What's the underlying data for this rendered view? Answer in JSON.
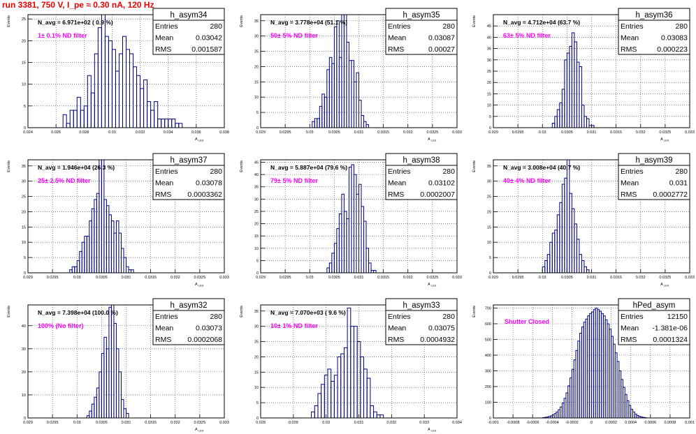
{
  "page": {
    "title": "run 3381,   750 V, I_pe ≈ 0.30 nA, 120 Hz",
    "title_color": "#ee0000",
    "hist_color": "#000080",
    "annotation_color": "#ff00ff"
  },
  "panels": [
    {
      "name": "h_asym34",
      "stats": {
        "entries_label": "Entries",
        "entries": "280",
        "mean_label": "Mean",
        "mean": "0.03042",
        "rms_label": "RMS",
        "rms": "0.001587"
      },
      "navg": "N_avg = 6.971e+02 ( 0.9 %)",
      "filter": "1± 0.1% ND filter",
      "chart_data": {
        "type": "histogram",
        "xlabel": "A",
        "xlabel_sub": "LED",
        "ylabel": "Events",
        "xlim": [
          0.024,
          0.038
        ],
        "ylim": [
          0,
          26
        ],
        "xticks": [
          0.024,
          0.026,
          0.028,
          0.03,
          0.032,
          0.034,
          0.036,
          0.038
        ],
        "xtick_labels": [
          "0.024",
          "0.026",
          "0.028",
          "0.03",
          "0.032",
          "0.034",
          "0.036",
          "0.038"
        ],
        "yticks": [
          0,
          5,
          10,
          15,
          20,
          25
        ],
        "ytick_labels": [
          "0",
          "5",
          "10",
          "15",
          "20",
          "25"
        ],
        "grid": true,
        "bins_start": 0.0265,
        "bin_width": 0.00025,
        "counts": [
          3,
          1,
          4,
          4,
          7,
          4,
          5,
          12,
          8,
          17,
          23,
          26,
          21,
          20,
          18,
          13,
          17,
          21,
          18,
          17,
          14,
          12,
          9,
          11,
          6,
          4,
          6,
          2,
          2,
          2,
          2,
          2,
          1,
          1
        ]
      }
    },
    {
      "name": "h_asym35",
      "stats": {
        "entries_label": "Entries",
        "entries": "280",
        "mean_label": "Mean",
        "mean": "0.03087",
        "rms_label": "RMS",
        "rms": "0.00027"
      },
      "navg": "N_avg = 3.778e+04 (51.1 %)",
      "filter": "50± 5% ND filter",
      "chart_data": {
        "type": "histogram",
        "xlabel": "A",
        "xlabel_sub": "LED",
        "ylabel": "Events",
        "xlim": [
          0.029,
          0.033
        ],
        "ylim": [
          0,
          37
        ],
        "xticks": [
          0.029,
          0.0295,
          0.03,
          0.0305,
          0.031,
          0.0315,
          0.032,
          0.0325,
          0.033
        ],
        "xtick_labels": [
          "0.029",
          "0.0295",
          "0.03",
          "0.0305",
          "0.031",
          "0.0315",
          "0.032",
          "0.0325",
          "0.033"
        ],
        "yticks": [
          0,
          5,
          10,
          15,
          20,
          25,
          30,
          35
        ],
        "ytick_labels": [
          "0",
          "5",
          "10",
          "15",
          "20",
          "25",
          "30",
          "35"
        ],
        "grid": true,
        "bins_start": 0.03005,
        "bin_width": 5e-05,
        "counts": [
          2,
          3,
          3,
          7,
          11,
          10,
          19,
          23,
          21,
          33,
          35,
          23,
          37,
          37,
          28,
          22,
          22,
          15,
          18,
          9,
          4,
          2,
          1
        ]
      }
    },
    {
      "name": "h_asym36",
      "stats": {
        "entries_label": "Entries",
        "entries": "280",
        "mean_label": "Mean",
        "mean": "0.03083",
        "rms_label": "RMS",
        "rms": "0.000223"
      },
      "navg": "N_avg = 4.712e+04 (63.7 %)",
      "filter": "63± 5% ND filter",
      "chart_data": {
        "type": "histogram",
        "xlabel": "A",
        "xlabel_sub": "LED",
        "ylabel": "Events",
        "xlim": [
          0.029,
          0.033
        ],
        "ylim": [
          0,
          50
        ],
        "xticks": [
          0.029,
          0.0295,
          0.03,
          0.0305,
          0.031,
          0.0315,
          0.032,
          0.0325,
          0.033
        ],
        "xtick_labels": [
          "0.029",
          "0.0295",
          "0.03",
          "0.0305",
          "0.031",
          "0.0315",
          "0.032",
          "0.0325",
          "0.033"
        ],
        "yticks": [
          0,
          5,
          10,
          15,
          20,
          25,
          30,
          35,
          40,
          45
        ],
        "ytick_labels": [
          "0",
          "5",
          "10",
          "15",
          "20",
          "25",
          "30",
          "35",
          "40",
          "45"
        ],
        "grid": true,
        "bins_start": 0.0302,
        "bin_width": 5e-05,
        "counts": [
          2,
          5,
          8,
          11,
          17,
          30,
          33,
          36,
          42,
          38,
          29,
          27,
          10,
          5,
          4,
          1,
          1
        ]
      }
    },
    {
      "name": "h_asym37",
      "stats": {
        "entries_label": "Entries",
        "entries": "280",
        "mean_label": "Mean",
        "mean": "0.03078",
        "rms_label": "RMS",
        "rms": "0.0003362"
      },
      "navg": "N_avg = 1.946e+04 (26.3 %)",
      "filter": "25± 2.5% ND filter",
      "chart_data": {
        "type": "histogram",
        "xlabel": "A",
        "xlabel_sub": "LED",
        "ylabel": "Events",
        "xlim": [
          0.029,
          0.033
        ],
        "ylim": [
          0,
          37
        ],
        "xticks": [
          0.029,
          0.0295,
          0.03,
          0.0305,
          0.031,
          0.0315,
          0.032,
          0.0325,
          0.033
        ],
        "xtick_labels": [
          "0.029",
          "0.0295",
          "0.03",
          "0.0305",
          "0.031",
          "0.0315",
          "0.032",
          "0.0325",
          "0.033"
        ],
        "yticks": [
          0,
          5,
          10,
          15,
          20,
          25,
          30,
          35
        ],
        "ytick_labels": [
          "0",
          "5",
          "10",
          "15",
          "20",
          "25",
          "30",
          "35"
        ],
        "grid": true,
        "bins_start": 0.02985,
        "bin_width": 5e-05,
        "counts": [
          1,
          2,
          2,
          4,
          7,
          10,
          12,
          12,
          17,
          21,
          24,
          26,
          37,
          37,
          24,
          22,
          19,
          17,
          13,
          17,
          13,
          8,
          5,
          2,
          1,
          1
        ]
      }
    },
    {
      "name": "h_asym38",
      "stats": {
        "entries_label": "Entries",
        "entries": "280",
        "mean_label": "Mean",
        "mean": "0.03102",
        "rms_label": "RMS",
        "rms": "0.0002007"
      },
      "navg": "N_avg = 5.887e+04 (79.6 %)",
      "filter": "79± 5% ND filter",
      "chart_data": {
        "type": "histogram",
        "xlabel": "A",
        "xlabel_sub": "LED",
        "ylabel": "Events",
        "xlim": [
          0.029,
          0.033
        ],
        "ylim": [
          0,
          46
        ],
        "xticks": [
          0.029,
          0.0295,
          0.03,
          0.0305,
          0.031,
          0.0315,
          0.032,
          0.0325,
          0.033
        ],
        "xtick_labels": [
          "0.029",
          "0.0295",
          "0.03",
          "0.0305",
          "0.031",
          "0.0315",
          "0.032",
          "0.0325",
          "0.033"
        ],
        "yticks": [
          0,
          5,
          10,
          15,
          20,
          25,
          30,
          35,
          40,
          45
        ],
        "ytick_labels": [
          "0",
          "5",
          "10",
          "15",
          "20",
          "25",
          "30",
          "35",
          "40",
          "45"
        ],
        "grid": true,
        "bins_start": 0.03035,
        "bin_width": 5e-05,
        "counts": [
          2,
          4,
          8,
          12,
          18,
          24,
          32,
          25,
          22,
          43,
          44,
          40,
          32,
          36,
          27,
          21,
          10,
          4,
          1,
          1
        ]
      }
    },
    {
      "name": "h_asym39",
      "stats": {
        "entries_label": "Entries",
        "entries": "280",
        "mean_label": "Mean",
        "mean": "0.031",
        "rms_label": "RMS",
        "rms": "0.0002772"
      },
      "navg": "N_avg = 3.008e+04 (40.7 %)",
      "filter": "40± 4% ND filter",
      "chart_data": {
        "type": "histogram",
        "xlabel": "A",
        "xlabel_sub": "LED",
        "ylabel": "Events",
        "xlim": [
          0.029,
          0.033
        ],
        "ylim": [
          0,
          37
        ],
        "xticks": [
          0.029,
          0.0295,
          0.03,
          0.0305,
          0.031,
          0.0315,
          0.032,
          0.0325,
          0.033
        ],
        "xtick_labels": [
          "0.029",
          "0.0295",
          "0.03",
          "0.0305",
          "0.031",
          "0.0315",
          "0.032",
          "0.0325",
          "0.033"
        ],
        "yticks": [
          0,
          5,
          10,
          15,
          20,
          25,
          30,
          35
        ],
        "ytick_labels": [
          "0",
          "5",
          "10",
          "15",
          "20",
          "25",
          "30",
          "35"
        ],
        "grid": true,
        "bins_start": 0.03,
        "bin_width": 5e-05,
        "counts": [
          2,
          4,
          6,
          10,
          13,
          14,
          19,
          23,
          29,
          31,
          37,
          26,
          21,
          16,
          11,
          6,
          4,
          2,
          1
        ]
      }
    },
    {
      "name": "h_asym32",
      "stats": {
        "entries_label": "Entries",
        "entries": "280",
        "mean_label": "Mean",
        "mean": "0.03073",
        "rms_label": "RMS",
        "rms": "0.0002068"
      },
      "navg": "N_avg = 7.398e+04 (100.0 %)",
      "filter": "100% (No filter)",
      "chart_data": {
        "type": "histogram",
        "xlabel": "A",
        "xlabel_sub": "LED",
        "ylabel": "Events",
        "xlim": [
          0.029,
          0.033
        ],
        "ylim": [
          0,
          49
        ],
        "xticks": [
          0.029,
          0.0295,
          0.03,
          0.0305,
          0.031,
          0.0315,
          0.032,
          0.0325,
          0.033
        ],
        "xtick_labels": [
          "0.029",
          "0.0295",
          "0.03",
          "0.0305",
          "0.031",
          "0.0315",
          "0.032",
          "0.0325",
          "0.033"
        ],
        "yticks": [
          0,
          10,
          20,
          30,
          40
        ],
        "ytick_labels": [
          "0",
          "10",
          "20",
          "30",
          "40"
        ],
        "grid": true,
        "bins_start": 0.0302,
        "bin_width": 5e-05,
        "counts": [
          1,
          3,
          6,
          9,
          13,
          20,
          28,
          35,
          30,
          48,
          49,
          41,
          30,
          20,
          8,
          4,
          2
        ]
      }
    },
    {
      "name": "h_asym33",
      "stats": {
        "entries_label": "Entries",
        "entries": "280",
        "mean_label": "Mean",
        "mean": "0.03075",
        "rms_label": "RMS",
        "rms": "0.0004932"
      },
      "navg": "N_avg = 7.070e+03 ( 9.6 %)",
      "filter": "10± 1% ND filter",
      "chart_data": {
        "type": "histogram",
        "xlabel": "A",
        "xlabel_sub": "LED",
        "ylabel": "Events",
        "xlim": [
          0.028,
          0.034
        ],
        "ylim": [
          0,
          37
        ],
        "xticks": [
          0.028,
          0.029,
          0.03,
          0.031,
          0.032,
          0.033,
          0.034
        ],
        "xtick_labels": [
          "0.028",
          "0.029",
          "0.03",
          "0.031",
          "0.032",
          "0.033",
          "0.034"
        ],
        "yticks": [
          0,
          5,
          10,
          15,
          20,
          25,
          30,
          35
        ],
        "ytick_labels": [
          "0",
          "5",
          "10",
          "15",
          "20",
          "25",
          "30",
          "35"
        ],
        "grid": true,
        "bins_start": 0.02955,
        "bin_width": 0.0001,
        "counts": [
          2,
          4,
          8,
          11,
          14,
          16,
          12,
          14,
          20,
          21,
          23,
          36,
          30,
          30,
          25,
          20,
          16,
          13,
          4,
          2,
          1,
          1
        ]
      }
    },
    {
      "name": "hPed_asym",
      "stats": {
        "entries_label": "Entries",
        "entries": "12150",
        "mean_label": "Mean",
        "mean": "-1.381e-06",
        "rms_label": "RMS",
        "rms": "0.0001324"
      },
      "navg": "",
      "filter": "Shutter Closed",
      "chart_data": {
        "type": "histogram",
        "xlabel": "",
        "xlabel_sub": "",
        "ylabel": "Events",
        "xlim": [
          -0.001,
          0.001
        ],
        "ylim": [
          0,
          720
        ],
        "xticks": [
          -0.001,
          -0.0008,
          -0.0006,
          -0.0004,
          -0.0002,
          0,
          0.0002,
          0.0004,
          0.0006,
          0.0008,
          0.001
        ],
        "xtick_labels": [
          "-0.001",
          "-0.0008",
          "-0.0006",
          "-0.0004",
          "-0.0002",
          "0",
          "0.0002",
          "0.0004",
          "0.0006",
          "0.0008",
          "0.001"
        ],
        "yticks": [
          0,
          100,
          200,
          300,
          400,
          500,
          600,
          700
        ],
        "ytick_labels": [
          "0",
          "100",
          "200",
          "300",
          "400",
          "500",
          "600",
          "700"
        ],
        "grid": true,
        "bins_start": -0.0005,
        "bin_width": 2e-05,
        "counts": [
          2,
          4,
          6,
          9,
          13,
          19,
          28,
          38,
          52,
          70,
          95,
          125,
          160,
          205,
          255,
          310,
          370,
          430,
          490,
          540,
          580,
          610,
          630,
          650,
          665,
          675,
          690,
          700,
          690,
          680,
          665,
          650,
          625,
          600,
          565,
          520,
          470,
          415,
          360,
          300,
          245,
          195,
          150,
          110,
          80,
          55,
          38,
          25,
          16,
          10,
          6,
          4,
          2
        ]
      }
    }
  ]
}
